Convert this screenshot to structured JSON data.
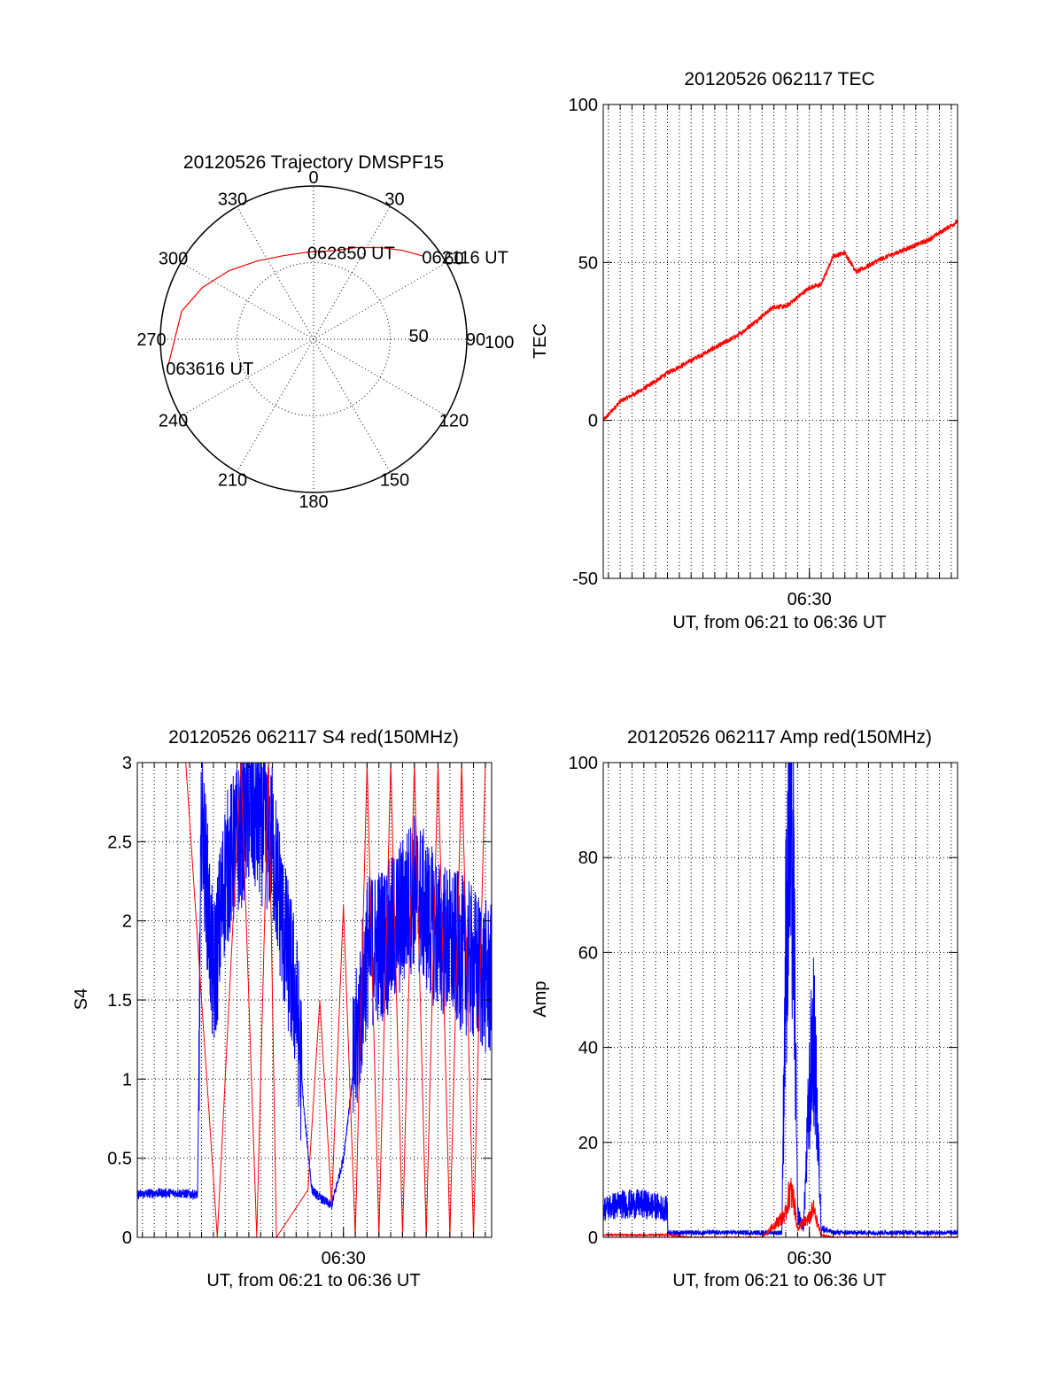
{
  "chart_data": [
    {
      "type": "polar",
      "title": "20120526 Trajectory DMSPF15",
      "azimuth_labels": [
        "0",
        "30",
        "60",
        "90",
        "120",
        "150",
        "180",
        "210",
        "240",
        "270",
        "300",
        "330"
      ],
      "radial_labels": [
        "50",
        "100"
      ],
      "radial_max": 100,
      "line_color": "#ff0000",
      "trajectory": [
        {
          "az": 53,
          "r": 90
        },
        {
          "az": 45,
          "r": 82
        },
        {
          "az": 36,
          "r": 74
        },
        {
          "az": 25,
          "r": 66
        },
        {
          "az": 12,
          "r": 59
        },
        {
          "az": 357,
          "r": 57
        },
        {
          "az": 340,
          "r": 58
        },
        {
          "az": 324,
          "r": 63
        },
        {
          "az": 309,
          "r": 71
        },
        {
          "az": 295,
          "r": 80
        },
        {
          "az": 282,
          "r": 88
        },
        {
          "az": 259,
          "r": 97
        }
      ],
      "annotations": [
        {
          "text": "062116 UT",
          "az": 53,
          "r": 90
        },
        {
          "text": "062850 UT",
          "az": 357,
          "r": 57
        },
        {
          "text": "063616 UT",
          "az": 259,
          "r": 97
        }
      ]
    },
    {
      "type": "line",
      "title": "20120526 062117 TEC",
      "ylabel": "TEC",
      "xlabel": "UT, from 06:21 to 06:36 UT",
      "xlim": [
        "06:21:17",
        "06:36:16"
      ],
      "ylim": [
        -50,
        100
      ],
      "yticks": [
        -50,
        0,
        50,
        100
      ],
      "xtick_labels": [
        {
          "label": "06:30",
          "value": "06:30:00"
        }
      ],
      "grid": true,
      "series": [
        {
          "color": "#ff0000",
          "x": [
            "06:21:17",
            "06:22:00",
            "06:23:00",
            "06:24:00",
            "06:25:00",
            "06:26:00",
            "06:27:00",
            "06:28:00",
            "06:28:30",
            "06:29:00",
            "06:30:00",
            "06:30:30",
            "06:31:00",
            "06:31:30",
            "06:32:00",
            "06:33:00",
            "06:34:00",
            "06:35:00",
            "06:36:16"
          ],
          "values": [
            0,
            6,
            10,
            15,
            19,
            23,
            27,
            33,
            36,
            36,
            42,
            43,
            52,
            53,
            47,
            51,
            54,
            57,
            63
          ]
        }
      ]
    },
    {
      "type": "line",
      "title": "20120526 062117 S4 red(150MHz)",
      "ylabel": "S4",
      "xlabel": "UT, from 06:21 to 06:36 UT",
      "xlim": [
        "06:21:17",
        "06:36:16"
      ],
      "ylim": [
        0,
        3
      ],
      "yticks": [
        "0",
        "0.5",
        "1",
        "1.5",
        "2",
        "2.5",
        "3"
      ],
      "xtick_labels": [
        {
          "label": "06:30",
          "value": "06:30:00"
        }
      ],
      "grid": true,
      "series": [
        {
          "color": "#0000ff",
          "x": [
            "06:21:17",
            "06:22:00",
            "06:23:00",
            "06:23:50",
            "06:24:00",
            "06:24:30",
            "06:25:00",
            "06:26:00",
            "06:27:00",
            "06:27:30",
            "06:28:00",
            "06:28:20",
            "06:28:40",
            "06:29:00",
            "06:29:30",
            "06:30:00",
            "06:31:00",
            "06:32:00",
            "06:33:00",
            "06:34:00",
            "06:35:00",
            "06:36:16"
          ],
          "values": [
            0.27,
            0.28,
            0.28,
            0.27,
            2.7,
            1.6,
            2.3,
            2.7,
            2.5,
            1.9,
            1.5,
            0.8,
            0.3,
            0.25,
            0.2,
            0.5,
            1.8,
            1.9,
            2.2,
            1.9,
            1.8,
            1.6
          ]
        },
        {
          "color": "#ff0000",
          "x": [
            "06:22:50",
            "06:23:20",
            "06:24:40",
            "06:25:40",
            "06:26:20",
            "06:26:50",
            "06:27:10",
            "06:28:30",
            "06:29:00",
            "06:29:30",
            "06:30:00",
            "06:30:30",
            "06:31:00",
            "06:31:30",
            "06:32:00",
            "06:32:30",
            "06:33:00",
            "06:33:30",
            "06:34:00",
            "06:34:30",
            "06:35:00",
            "06:35:30",
            "06:36:00"
          ],
          "values": [
            3,
            3,
            0,
            3,
            0,
            3,
            0,
            0.3,
            1.5,
            0.2,
            2.1,
            0,
            3,
            0,
            3,
            0,
            3,
            0,
            3,
            0,
            3,
            0,
            3
          ]
        }
      ]
    },
    {
      "type": "line",
      "title": "20120526 062117 Amp red(150MHz)",
      "ylabel": "Amp",
      "xlabel": "UT, from 06:21 to 06:36 UT",
      "xlim": [
        "06:21:17",
        "06:36:16"
      ],
      "ylim": [
        0,
        100
      ],
      "yticks": [
        0,
        20,
        40,
        60,
        80,
        100
      ],
      "xtick_labels": [
        {
          "label": "06:30",
          "value": "06:30:00"
        }
      ],
      "grid": true,
      "series": [
        {
          "color": "#0000ff",
          "x": [
            "06:21:17",
            "06:22:00",
            "06:23:00",
            "06:24:00",
            "06:24:01",
            "06:25:00",
            "06:26:00",
            "06:27:00",
            "06:28:00",
            "06:28:50",
            "06:29:00",
            "06:29:10",
            "06:29:20",
            "06:29:30",
            "06:29:45",
            "06:30:00",
            "06:30:10",
            "06:30:20",
            "06:30:30",
            "06:31:00",
            "06:32:00",
            "06:33:00",
            "06:34:00",
            "06:35:00",
            "06:36:16"
          ],
          "values": [
            6,
            7,
            7,
            6,
            1,
            1,
            1,
            1,
            1,
            1,
            60,
            85,
            70,
            5,
            2,
            30,
            44,
            25,
            2,
            1,
            1,
            1,
            1,
            1,
            1
          ]
        },
        {
          "color": "#ff0000",
          "x": [
            "06:21:17",
            "06:22:00",
            "06:23:00",
            "06:24:00",
            "06:25:00",
            "06:26:00",
            "06:27:00",
            "06:28:00",
            "06:29:00",
            "06:29:10",
            "06:29:20",
            "06:29:30",
            "06:30:00",
            "06:30:10",
            "06:30:20",
            "06:30:30",
            "06:31:00",
            "06:32:00",
            "06:33:00",
            "06:34:00",
            "06:35:00",
            "06:36:16"
          ],
          "values": [
            0.5,
            0.5,
            0.5,
            0.5,
            0,
            0,
            0,
            0,
            5,
            10,
            8,
            2,
            4,
            6,
            3,
            0.5,
            0,
            0,
            0,
            0,
            0,
            0
          ]
        }
      ]
    }
  ]
}
